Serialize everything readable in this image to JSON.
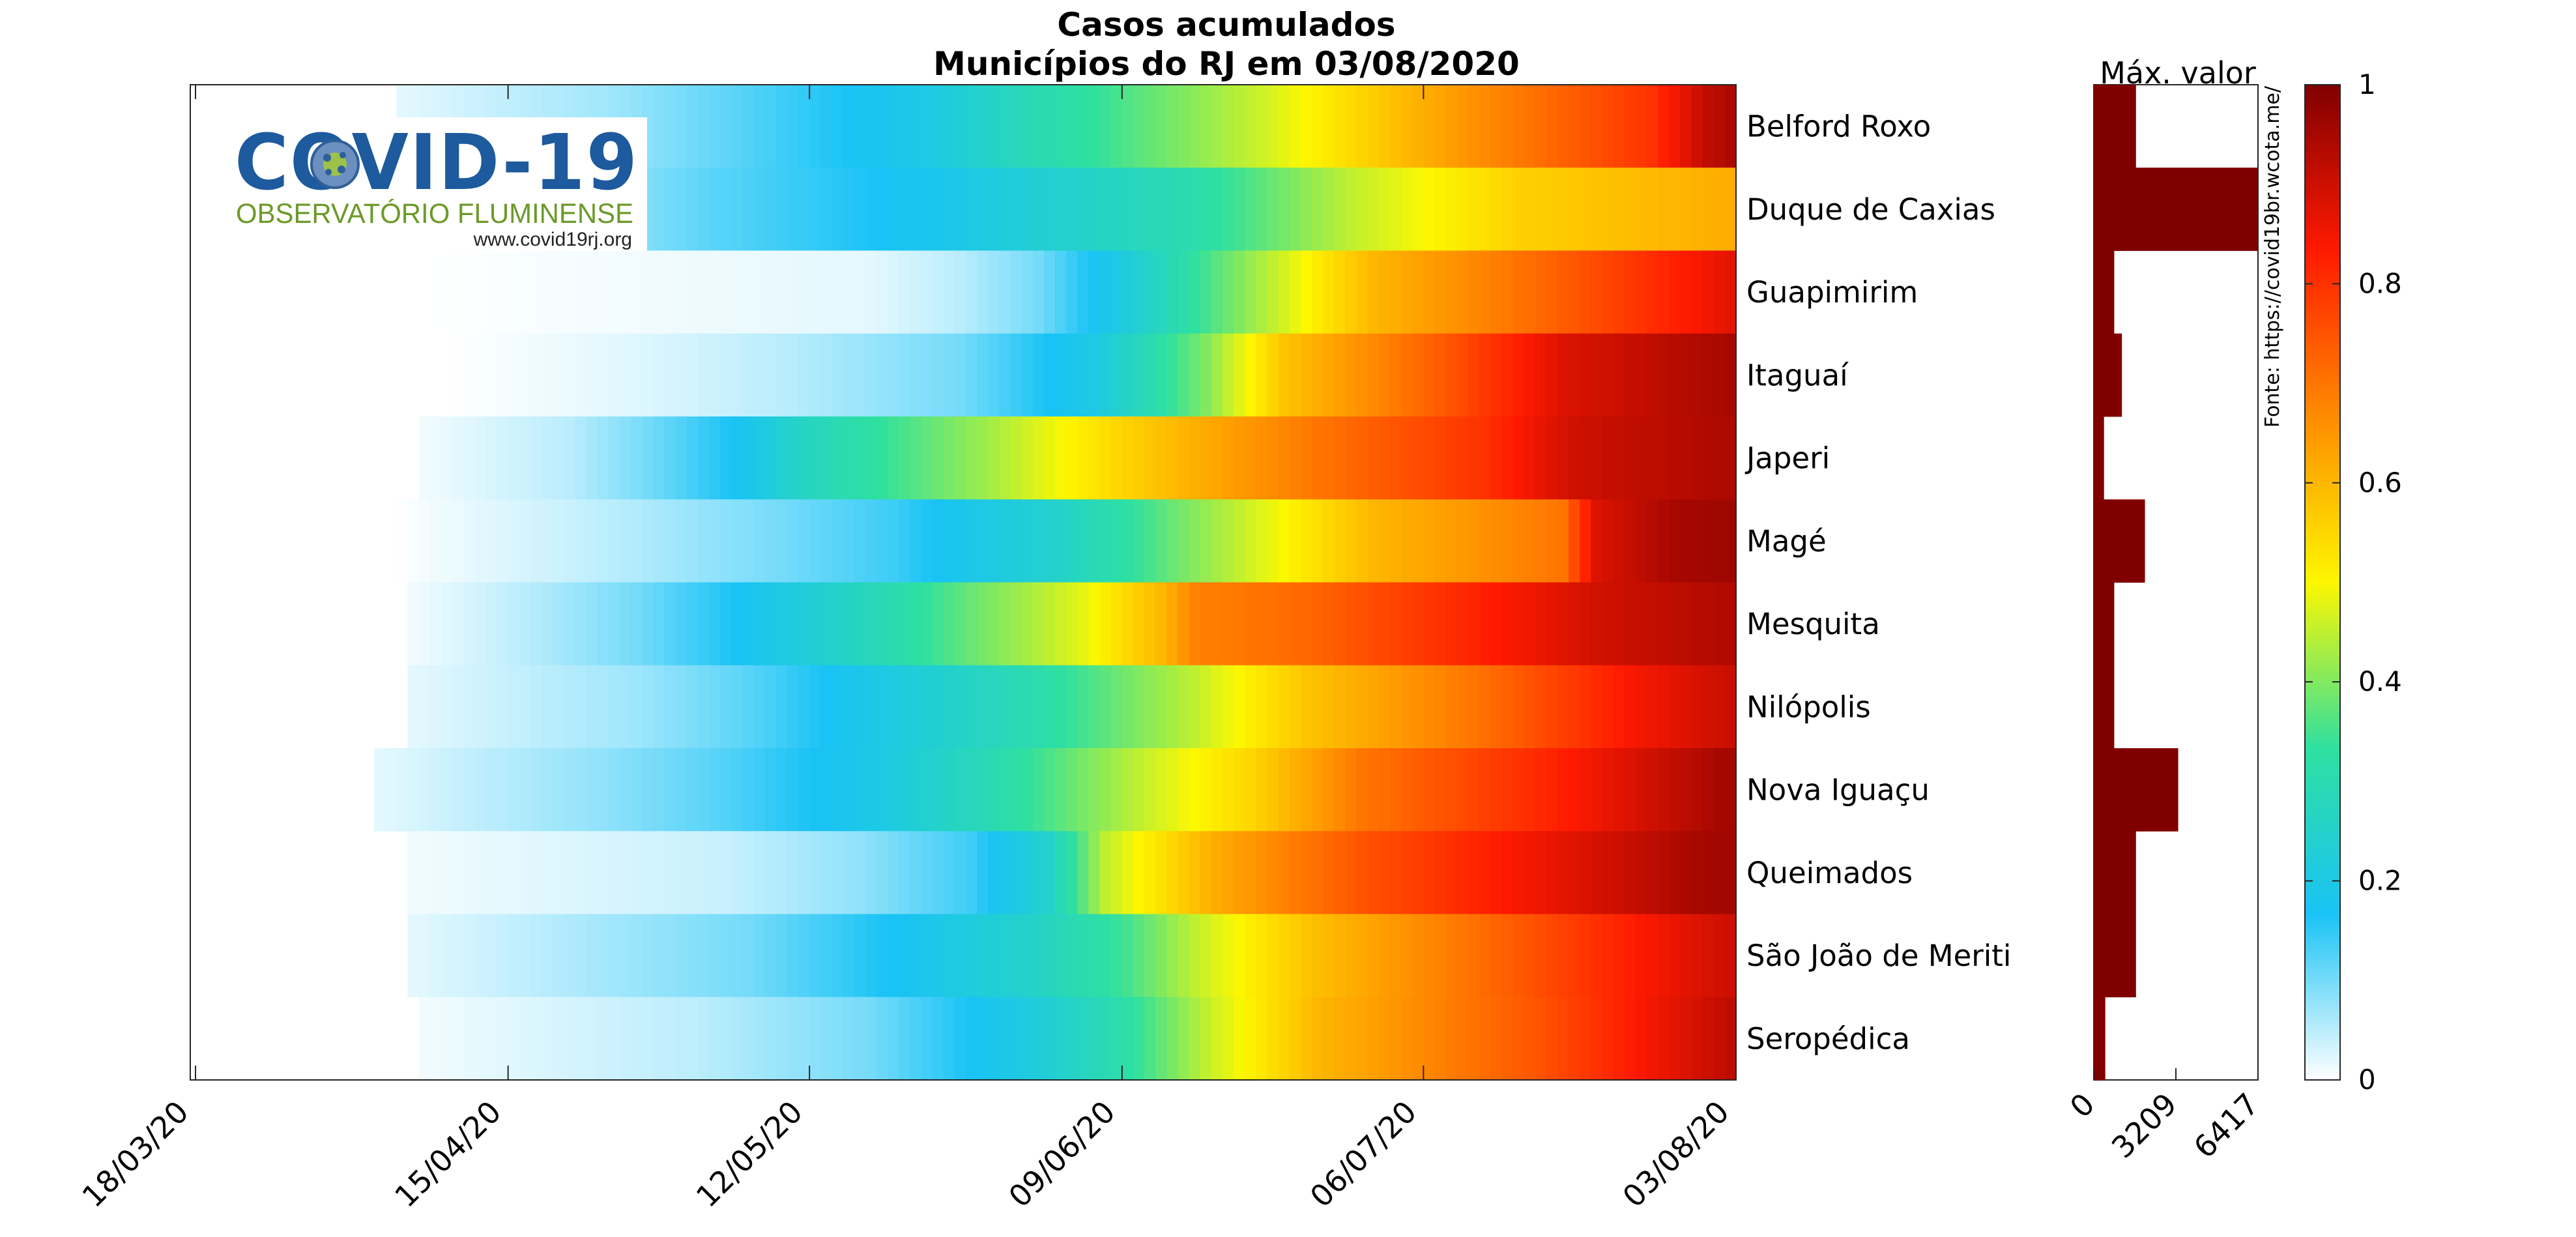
{
  "chart_data": {
    "type": "heatmap",
    "title": [
      "Casos acumulados",
      "Municípios do RJ em 03/08/2020"
    ],
    "x_tick_labels": [
      "18/03/20",
      "15/04/20",
      "12/05/20",
      "09/06/20",
      "06/07/20",
      "03/08/20"
    ],
    "x_range": [
      "18/03/20",
      "03/08/20"
    ],
    "rows": [
      "Belford Roxo",
      "Duque de Caxias",
      "Guapimirim",
      "Itaguaí",
      "Japeri",
      "Magé",
      "Mesquita",
      "Nilópolis",
      "Nova Iguaçu",
      "Queimados",
      "São João de Meriti",
      "Seropédica"
    ],
    "normalized_cases": [
      {
        "name": "Belford Roxo",
        "start": "05/04/20",
        "stops": [
          [
            0,
            0.02
          ],
          [
            19,
            0.07
          ],
          [
            30,
            0.12
          ],
          [
            47,
            0.2
          ],
          [
            55,
            0.28
          ],
          [
            70,
            0.4
          ],
          [
            78,
            0.47
          ],
          [
            95,
            0.65
          ],
          [
            112,
            0.8
          ],
          [
            117,
            0.92
          ],
          [
            122,
            0.97
          ],
          [
            138,
            1.0
          ]
        ]
      },
      {
        "name": "Duque de Caxias",
        "start": "05/04/20",
        "stops": [
          [
            0,
            0.02
          ],
          [
            15,
            0.06
          ],
          [
            28,
            0.12
          ],
          [
            47,
            0.18
          ],
          [
            70,
            0.3
          ],
          [
            85,
            0.45
          ],
          [
            100,
            0.56
          ],
          [
            120,
            0.62
          ],
          [
            122,
            0.75
          ],
          [
            125,
            0.88
          ],
          [
            130,
            0.95
          ],
          [
            138,
            1.0
          ]
        ]
      },
      {
        "name": "Guapimirim",
        "start": "07/04/20",
        "stops": [
          [
            0,
            0.0
          ],
          [
            40,
            0.02
          ],
          [
            48,
            0.05
          ],
          [
            55,
            0.1
          ],
          [
            62,
            0.2
          ],
          [
            70,
            0.35
          ],
          [
            76,
            0.45
          ],
          [
            85,
            0.6
          ],
          [
            100,
            0.72
          ],
          [
            115,
            0.85
          ],
          [
            125,
            0.95
          ],
          [
            136,
            1.0
          ]
        ]
      },
      {
        "name": "Itaguaí",
        "start": "09/04/20",
        "stops": [
          [
            0,
            0.0
          ],
          [
            15,
            0.02
          ],
          [
            30,
            0.05
          ],
          [
            46,
            0.1
          ],
          [
            58,
            0.2
          ],
          [
            68,
            0.4
          ],
          [
            75,
            0.58
          ],
          [
            90,
            0.75
          ],
          [
            100,
            0.88
          ],
          [
            115,
            0.95
          ],
          [
            134,
            1.0
          ]
        ]
      },
      {
        "name": "Japeri",
        "start": "07/04/20",
        "stops": [
          [
            0,
            0.01
          ],
          [
            13,
            0.05
          ],
          [
            20,
            0.1
          ],
          [
            28,
            0.17
          ],
          [
            35,
            0.28
          ],
          [
            50,
            0.42
          ],
          [
            62,
            0.55
          ],
          [
            70,
            0.62
          ],
          [
            80,
            0.7
          ],
          [
            95,
            0.8
          ],
          [
            103,
            0.9
          ],
          [
            136,
            1.0
          ]
        ]
      },
      {
        "name": "Magé",
        "start": "04/04/20",
        "stops": [
          [
            0,
            0.0
          ],
          [
            20,
            0.05
          ],
          [
            35,
            0.1
          ],
          [
            45,
            0.14
          ],
          [
            60,
            0.25
          ],
          [
            70,
            0.38
          ],
          [
            80,
            0.5
          ],
          [
            88,
            0.6
          ],
          [
            105,
            0.7
          ],
          [
            108,
            0.88
          ],
          [
            115,
            0.95
          ],
          [
            139,
            1.0
          ]
        ]
      },
      {
        "name": "Mesquita",
        "start": "06/04/20",
        "stops": [
          [
            0,
            0.01
          ],
          [
            10,
            0.05
          ],
          [
            20,
            0.1
          ],
          [
            28,
            0.16
          ],
          [
            38,
            0.25
          ],
          [
            50,
            0.38
          ],
          [
            60,
            0.48
          ],
          [
            67,
            0.6
          ],
          [
            70,
            0.68
          ],
          [
            80,
            0.72
          ],
          [
            95,
            0.82
          ],
          [
            107,
            0.9
          ],
          [
            137,
            1.0
          ]
        ]
      },
      {
        "name": "Nilópolis",
        "start": "06/04/20",
        "stops": [
          [
            0,
            0.02
          ],
          [
            20,
            0.07
          ],
          [
            30,
            0.12
          ],
          [
            42,
            0.2
          ],
          [
            55,
            0.3
          ],
          [
            70,
            0.45
          ],
          [
            80,
            0.58
          ],
          [
            95,
            0.7
          ],
          [
            110,
            0.85
          ],
          [
            120,
            0.92
          ],
          [
            137,
            1.0
          ]
        ]
      },
      {
        "name": "Nova Iguaçu",
        "start": "03/04/20",
        "stops": [
          [
            0,
            0.02
          ],
          [
            20,
            0.08
          ],
          [
            30,
            0.12
          ],
          [
            45,
            0.2
          ],
          [
            55,
            0.3
          ],
          [
            68,
            0.45
          ],
          [
            78,
            0.55
          ],
          [
            88,
            0.7
          ],
          [
            105,
            0.82
          ],
          [
            120,
            0.95
          ],
          [
            140,
            1.0
          ]
        ]
      },
      {
        "name": "Queimados",
        "start": "06/04/20",
        "stops": [
          [
            0,
            0.01
          ],
          [
            28,
            0.04
          ],
          [
            40,
            0.08
          ],
          [
            50,
            0.14
          ],
          [
            57,
            0.25
          ],
          [
            62,
            0.45
          ],
          [
            72,
            0.62
          ],
          [
            85,
            0.75
          ],
          [
            100,
            0.85
          ],
          [
            115,
            0.95
          ],
          [
            137,
            1.0
          ]
        ]
      },
      {
        "name": "São João de Meriti",
        "start": "06/04/20",
        "stops": [
          [
            0,
            0.02
          ],
          [
            15,
            0.06
          ],
          [
            30,
            0.1
          ],
          [
            45,
            0.18
          ],
          [
            55,
            0.25
          ],
          [
            64,
            0.35
          ],
          [
            70,
            0.45
          ],
          [
            80,
            0.58
          ],
          [
            100,
            0.75
          ],
          [
            115,
            0.88
          ],
          [
            125,
            0.95
          ],
          [
            137,
            1.0
          ]
        ]
      },
      {
        "name": "Seropédica",
        "start": "07/04/20",
        "stops": [
          [
            0,
            0.01
          ],
          [
            25,
            0.05
          ],
          [
            40,
            0.1
          ],
          [
            48,
            0.16
          ],
          [
            55,
            0.22
          ],
          [
            63,
            0.32
          ],
          [
            70,
            0.45
          ],
          [
            80,
            0.6
          ],
          [
            100,
            0.75
          ],
          [
            110,
            0.85
          ],
          [
            120,
            0.95
          ],
          [
            136,
            1.0
          ]
        ]
      }
    ],
    "side_bar": {
      "title": "Máx. valor",
      "x_tick_labels": [
        "0",
        "3209",
        "6417"
      ],
      "xlim": [
        0,
        6417
      ],
      "values": [
        1650,
        6417,
        800,
        1100,
        400,
        2000,
        800,
        800,
        3300,
        1650,
        1650,
        450
      ]
    },
    "colorbar": {
      "range": [
        0,
        1
      ],
      "tick_labels": [
        "0",
        "0.2",
        "0.4",
        "0.6",
        "0.8",
        "1"
      ],
      "colormap": [
        "#ffffff",
        "#19c3f5",
        "#2fe0a0",
        "#fdf700",
        "#ff8c00",
        "#ff1a00",
        "#800000"
      ]
    },
    "grid": false,
    "legend": "none"
  },
  "source_note": "Fonte: https://covid19br.wcota.me/",
  "logo": {
    "title": "COVID-19",
    "subtitle": "OBSERVATÓRIO FLUMINENSE",
    "url": "www.covid19rj.org"
  }
}
